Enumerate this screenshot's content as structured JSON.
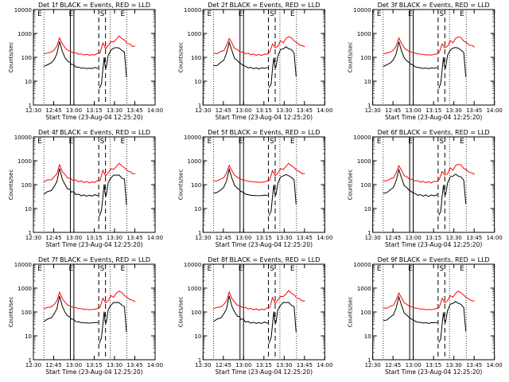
{
  "charts": [
    {
      "title": "Det 1f BLACK = Events, RED = LLD",
      "ylabel": "Counts/sec",
      "xlabel": "Start Time (23-Aug-04 12:25:20)"
    },
    {
      "title": "Det 2f BLACK = Events, RED = LLD",
      "ylabel": "Counts/sec",
      "xlabel": "Start Time (23-Aug-04 12:25:20)"
    },
    {
      "title": "Det 3f BLACK = Events, RED = LLD",
      "ylabel": "Counts/sec",
      "xlabel": "Start Time (23-Aug-04 12:25:20)"
    },
    {
      "title": "Det 4f BLACK = Events, RED = LLD",
      "ylabel": "Counts/sec",
      "xlabel": "Start Time (23-Aug-04 12:25:20)"
    },
    {
      "title": "Det 5f BLACK = Events, RED = LLD",
      "ylabel": "Counts/sec",
      "xlabel": "Start Time (23-Aug-04 12:25:20)"
    },
    {
      "title": "Det 6f BLACK = Events, RED = LLD",
      "ylabel": "Counts/sec",
      "xlabel": "Start Time (23-Aug-04 12:25:20)"
    },
    {
      "title": "Det 7f BLACK = Events, RED = LLD",
      "ylabel": "Counts/sec",
      "xlabel": "Start Time (23-Aug-04 12:25:20)"
    },
    {
      "title": "Det 8f BLACK = Events, RED = LLD",
      "ylabel": "Counts/sec",
      "xlabel": "Start Time (23-Aug-04 12:25:20)"
    },
    {
      "title": "Det 9f BLACK = Events, RED = LLD",
      "ylabel": "Counts/sec",
      "xlabel": "Start Time (23-Aug-04 12:25:20)"
    }
  ],
  "chart_data": {
    "type": "line",
    "panels": 9,
    "x_unit": "minutes after 12:25:20 UT",
    "xlim": [
      4.67,
      94.67
    ],
    "ylim": [
      1,
      10000
    ],
    "yscale": "log",
    "xticks": [
      "12:30",
      "12:45",
      "13:00",
      "13:15",
      "13:30",
      "13:45",
      "14:00"
    ],
    "yticks": [
      "1",
      "10",
      "100",
      "1000",
      "10000"
    ],
    "markers": {
      "E_labels": [
        "E",
        "E",
        "E"
      ],
      "S_label": "S",
      "dotted_lines": [
        12.4,
        61.5,
        73.8
      ],
      "solid_lines": [
        32.0,
        34.6
      ],
      "dashed_lines": [
        53.0,
        58.0
      ]
    },
    "colors": {
      "events": "#000000",
      "lld": "#ff0000",
      "grid": "#000000"
    },
    "series": [
      {
        "name": "BLACK = Events",
        "segments": [
          {
            "x": [
              12.5,
              15,
              18,
              20,
              22,
              24,
              26,
              28,
              30,
              31.8,
              32.5,
              34.5,
              36,
              38,
              40,
              42,
              44,
              46,
              48,
              50,
              52.5
            ],
            "y": [
              42,
              48,
              60,
              80,
              140,
              450,
              180,
              95,
              70,
              60,
              52,
              48,
              40,
              38,
              36,
              35,
              35,
              34,
              35,
              36,
              36
            ]
          },
          {
            "x": [
              53.5,
              55,
              56,
              57,
              57.8
            ],
            "y": [
              5,
              8,
              30,
              100,
              40
            ]
          },
          {
            "x": [
              58.5,
              60,
              62,
              64,
              66,
              68,
              70,
              72,
              73.5
            ],
            "y": [
              35,
              120,
              200,
              240,
              260,
              240,
              200,
              160,
              15
            ]
          }
        ]
      },
      {
        "name": "RED = LLD",
        "segments": [
          {
            "x": [
              12.5,
              15,
              18,
              20,
              22,
              24,
              26,
              28,
              30,
              32,
              34,
              36,
              38,
              40,
              42,
              44,
              46,
              48,
              50,
              52,
              54,
              56,
              58,
              60,
              62,
              64,
              66,
              68,
              70,
              72,
              74,
              76,
              78,
              80
            ],
            "y": [
              140,
              150,
              170,
              200,
              300,
              650,
              380,
              250,
              200,
              175,
              160,
              150,
              140,
              135,
              130,
              128,
              126,
              125,
              130,
              140,
              160,
              380,
              240,
              300,
              480,
              420,
              600,
              750,
              640,
              500,
              400,
              340,
              300,
              280
            ]
          }
        ]
      }
    ]
  }
}
